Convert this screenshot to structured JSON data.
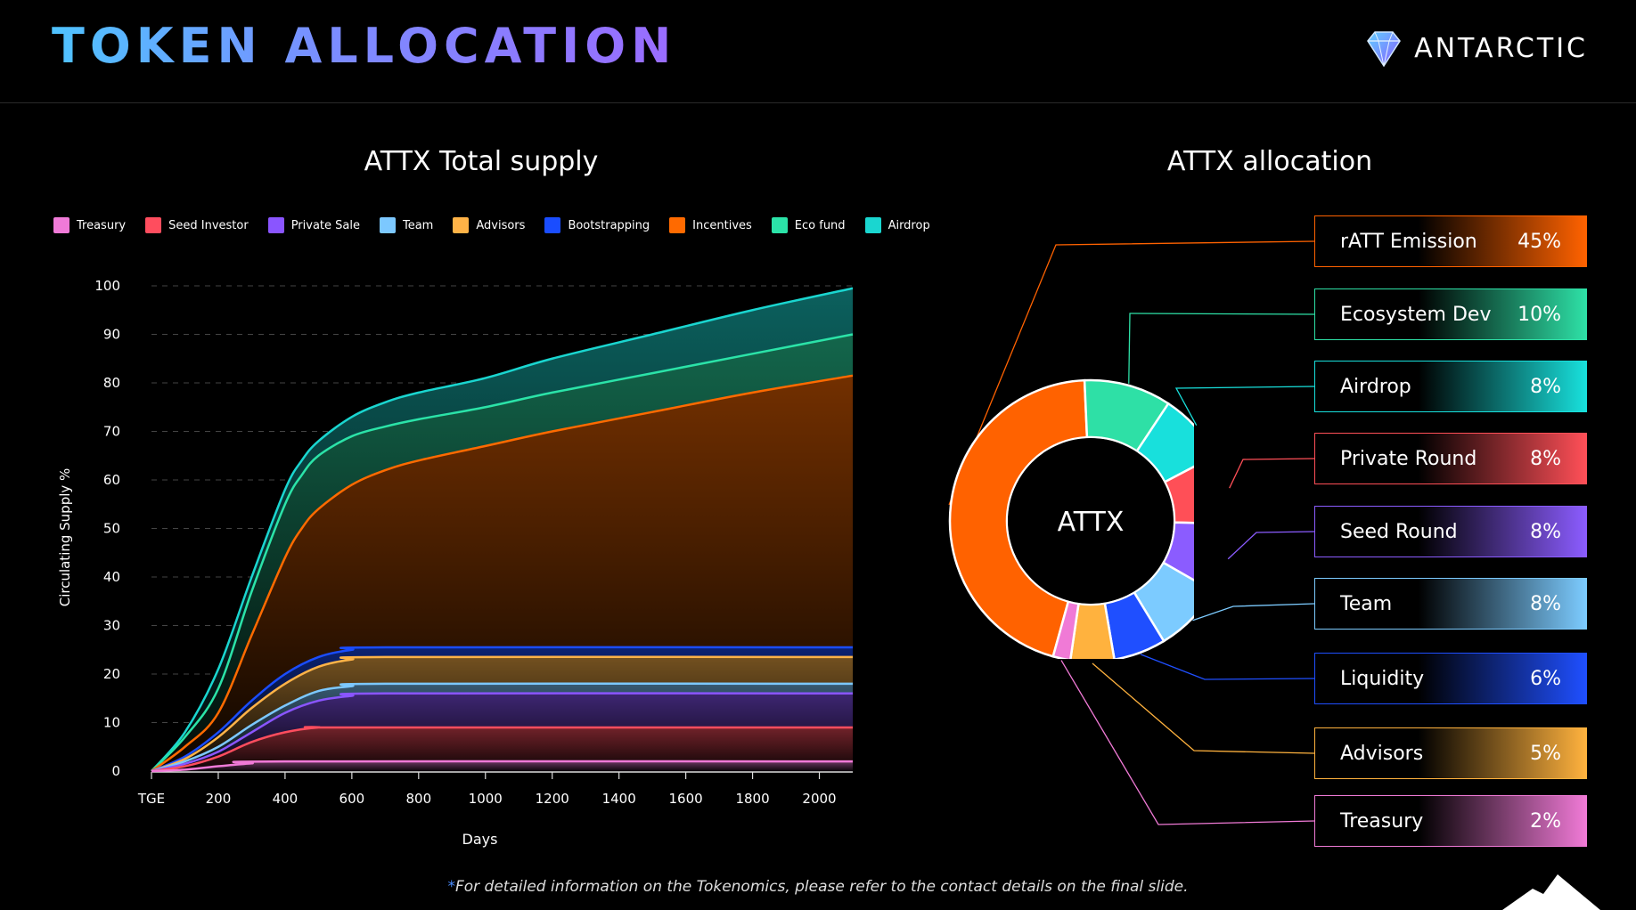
{
  "header": {
    "title": "TOKEN ALLOCATION",
    "brand": "ANTARCTIC"
  },
  "footnote": "For detailed information on the Tokenomics, please refer to the contact details on the final slide.",
  "chart_data": [
    {
      "type": "area",
      "title": "ATTX Total supply",
      "xlabel": "Days",
      "ylabel": "Circulating Supply  %",
      "x_ticks": [
        "TGE",
        "200",
        "400",
        "600",
        "800",
        "1000",
        "1200",
        "1400",
        "1600",
        "1800",
        "2000"
      ],
      "y_ticks": [
        "0",
        "10",
        "20",
        "30",
        "40",
        "50",
        "60",
        "70",
        "80",
        "90",
        "100"
      ],
      "xlim": [
        0,
        2100
      ],
      "ylim": [
        0,
        100
      ],
      "legend": [
        {
          "name": "Treasury",
          "color": "#f07ad8"
        },
        {
          "name": "Seed Investor",
          "color": "#ff4d5e"
        },
        {
          "name": "Private Sale",
          "color": "#8a55ff"
        },
        {
          "name": "Team",
          "color": "#7cc8ff"
        },
        {
          "name": "Advisors",
          "color": "#ffb347"
        },
        {
          "name": "Bootstrapping",
          "color": "#1a4dff"
        },
        {
          "name": "Incentives",
          "color": "#ff6a00"
        },
        {
          "name": "Eco fund",
          "color": "#2be3a8"
        },
        {
          "name": "Airdrop",
          "color": "#1ad6d0"
        }
      ],
      "series": [
        {
          "name": "Treasury",
          "x": [
            0,
            100,
            200,
            300,
            400,
            2100
          ],
          "y": [
            0,
            0.3,
            1,
            1.6,
            2,
            2
          ]
        },
        {
          "name": "Seed Investor",
          "x": [
            0,
            100,
            200,
            300,
            400,
            500,
            600,
            2100
          ],
          "y": [
            0,
            1,
            3,
            6,
            8,
            9,
            9,
            9
          ]
        },
        {
          "name": "Private Sale",
          "x": [
            0,
            100,
            200,
            300,
            400,
            500,
            600,
            700,
            2100
          ],
          "y": [
            0,
            1.5,
            4,
            8,
            12,
            14.5,
            15.5,
            16,
            16
          ]
        },
        {
          "name": "Team",
          "x": [
            0,
            100,
            200,
            300,
            400,
            500,
            600,
            700,
            2100
          ],
          "y": [
            0,
            2,
            5,
            9.5,
            13.5,
            16.5,
            17.5,
            18,
            18
          ]
        },
        {
          "name": "Advisors",
          "x": [
            0,
            100,
            200,
            300,
            400,
            500,
            600,
            700,
            2100
          ],
          "y": [
            0,
            2.5,
            7,
            13,
            18,
            21.5,
            23,
            23.5,
            23.5
          ]
        },
        {
          "name": "Bootstrapping",
          "x": [
            0,
            100,
            200,
            300,
            400,
            500,
            600,
            700,
            2100
          ],
          "y": [
            0,
            3,
            8,
            14.5,
            20,
            23.5,
            25,
            25.5,
            25.5
          ]
        },
        {
          "name": "Incentives",
          "x": [
            0,
            100,
            200,
            300,
            400,
            450,
            500,
            600,
            700,
            800,
            1000,
            1200,
            1500,
            1800,
            2100
          ],
          "y": [
            0,
            5,
            12,
            28,
            44,
            50,
            54,
            59,
            62,
            64,
            67,
            70,
            74,
            78,
            81.5
          ]
        },
        {
          "name": "Eco fund",
          "x": [
            0,
            100,
            200,
            300,
            400,
            450,
            500,
            600,
            700,
            800,
            1000,
            1200,
            1500,
            1800,
            2100
          ],
          "y": [
            0,
            7,
            17,
            37,
            55,
            61,
            65,
            69,
            71,
            72.5,
            75,
            78,
            82,
            86,
            90
          ]
        },
        {
          "name": "Airdrop",
          "x": [
            0,
            100,
            200,
            300,
            400,
            450,
            500,
            600,
            700,
            800,
            1000,
            1200,
            1500,
            1800,
            2100
          ],
          "y": [
            0,
            8,
            21,
            40,
            58,
            64,
            68,
            73,
            76,
            78,
            81,
            85,
            90,
            95,
            99.5
          ]
        }
      ]
    },
    {
      "type": "pie",
      "title": "ATTX allocation",
      "center_label": "ATTX",
      "slices": [
        {
          "label": "rATT Emission",
          "value": 45,
          "display": "45%",
          "color": "#ff6200"
        },
        {
          "label": "Ecosystem Dev",
          "value": 10,
          "display": "10%",
          "color": "#2ee0a6"
        },
        {
          "label": "Airdrop",
          "value": 8,
          "display": "8%",
          "color": "#18e0dc"
        },
        {
          "label": "Private Round",
          "value": 8,
          "display": "8%",
          "color": "#ff4f57"
        },
        {
          "label": "Seed Round",
          "value": 8,
          "display": "8%",
          "color": "#8b5cff"
        },
        {
          "label": "Team",
          "value": 8,
          "display": "8%",
          "color": "#7ccbff"
        },
        {
          "label": "Liquidity",
          "value": 6,
          "display": "6%",
          "color": "#1f4fff"
        },
        {
          "label": "Advisors",
          "value": 5,
          "display": "5%",
          "color": "#ffb23e"
        },
        {
          "label": "Treasury",
          "value": 2,
          "display": "2%",
          "color": "#f07ad6"
        }
      ]
    }
  ]
}
